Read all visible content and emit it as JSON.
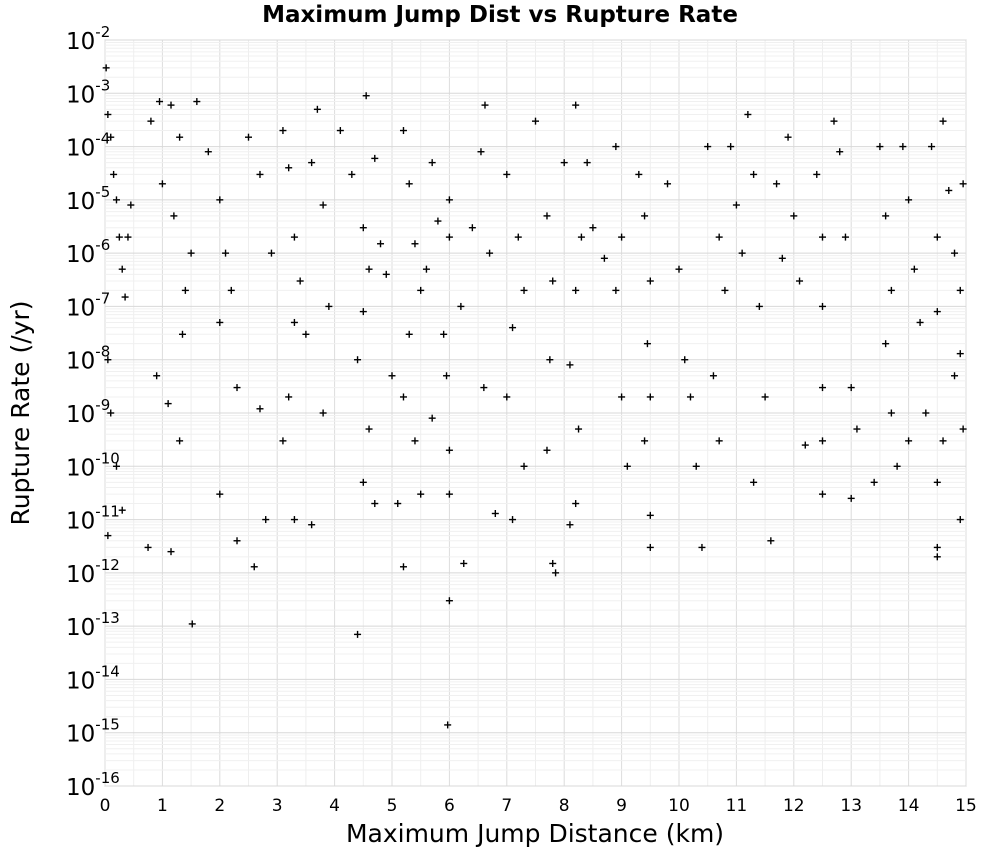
{
  "chart_data": {
    "type": "scatter",
    "title": "Maximum Jump Dist vs Rupture Rate",
    "xlabel": "Maximum Jump Distance (km)",
    "ylabel": "Rupture Rate (/yr)",
    "x_scale": "linear",
    "y_scale": "log",
    "xlim": [
      0,
      15
    ],
    "ylim": [
      1e-16,
      0.01
    ],
    "x_ticks": [
      "0",
      "1",
      "2",
      "3",
      "4",
      "5",
      "6",
      "7",
      "8",
      "9",
      "10",
      "11",
      "12",
      "13",
      "14",
      "15"
    ],
    "y_ticks": [
      {
        "base": "10",
        "exp": "-2"
      },
      {
        "base": "10",
        "exp": "-3"
      },
      {
        "base": "10",
        "exp": "-4"
      },
      {
        "base": "10",
        "exp": "-5"
      },
      {
        "base": "10",
        "exp": "-6"
      },
      {
        "base": "10",
        "exp": "-7"
      },
      {
        "base": "10",
        "exp": "-8"
      },
      {
        "base": "10",
        "exp": "-9"
      },
      {
        "base": "10",
        "exp": "-10"
      },
      {
        "base": "10",
        "exp": "-11"
      },
      {
        "base": "10",
        "exp": "-12"
      },
      {
        "base": "10",
        "exp": "-13"
      },
      {
        "base": "10",
        "exp": "-14"
      },
      {
        "base": "10",
        "exp": "-15"
      },
      {
        "base": "10",
        "exp": "-16"
      }
    ],
    "grid": true,
    "marker": "+",
    "marker_color": "#000000",
    "series": [
      {
        "points": [
          [
            0.02,
            0.003
          ],
          [
            0.05,
            0.0004
          ],
          [
            0.1,
            0.00015
          ],
          [
            0.15,
            3e-05
          ],
          [
            0.2,
            1e-05
          ],
          [
            0.25,
            2e-06
          ],
          [
            0.3,
            5e-07
          ],
          [
            0.35,
            1.5e-07
          ],
          [
            0.05,
            1e-08
          ],
          [
            0.1,
            1e-09
          ],
          [
            0.2,
            1e-10
          ],
          [
            0.3,
            1.5e-11
          ],
          [
            0.05,
            5e-12
          ],
          [
            0.4,
            2e-06
          ],
          [
            0.45,
            8e-06
          ],
          [
            0.8,
            0.0003
          ],
          [
            0.95,
            0.0007
          ],
          [
            1.15,
            0.0006
          ],
          [
            1.3,
            0.00015
          ],
          [
            1.0,
            2e-05
          ],
          [
            1.2,
            5e-06
          ],
          [
            1.5,
            1e-06
          ],
          [
            1.4,
            2e-07
          ],
          [
            1.35,
            3e-08
          ],
          [
            0.9,
            5e-09
          ],
          [
            1.1,
            1.5e-09
          ],
          [
            1.3,
            3e-10
          ],
          [
            0.75,
            3e-12
          ],
          [
            1.15,
            2.5e-12
          ],
          [
            1.52,
            1.1e-13
          ],
          [
            1.6,
            0.0007
          ],
          [
            1.8,
            8e-05
          ],
          [
            2.0,
            1e-05
          ],
          [
            2.1,
            1e-06
          ],
          [
            2.2,
            2e-07
          ],
          [
            2.0,
            5e-08
          ],
          [
            2.3,
            3e-09
          ],
          [
            2.0,
            3e-11
          ],
          [
            2.3,
            4e-12
          ],
          [
            2.6,
            1.3e-12
          ],
          [
            2.5,
            0.00015
          ],
          [
            2.7,
            3e-05
          ],
          [
            2.9,
            1e-06
          ],
          [
            2.7,
            1.2e-09
          ],
          [
            2.8,
            1e-11
          ],
          [
            3.1,
            0.0002
          ],
          [
            3.2,
            4e-05
          ],
          [
            3.3,
            2e-06
          ],
          [
            3.4,
            3e-07
          ],
          [
            3.3,
            5e-08
          ],
          [
            3.2,
            2e-09
          ],
          [
            3.1,
            3e-10
          ],
          [
            3.3,
            1e-11
          ],
          [
            3.6,
            5e-05
          ],
          [
            3.7,
            0.0005
          ],
          [
            3.8,
            8e-06
          ],
          [
            3.9,
            1e-07
          ],
          [
            3.5,
            3e-08
          ],
          [
            3.8,
            1e-09
          ],
          [
            3.6,
            8e-12
          ],
          [
            4.1,
            0.0002
          ],
          [
            4.3,
            3e-05
          ],
          [
            4.5,
            3e-06
          ],
          [
            4.6,
            5e-07
          ],
          [
            4.5,
            8e-08
          ],
          [
            4.4,
            1e-08
          ],
          [
            4.6,
            5e-10
          ],
          [
            4.5,
            5e-11
          ],
          [
            4.4,
            7e-14
          ],
          [
            4.7,
            2e-11
          ],
          [
            4.8,
            1.5e-06
          ],
          [
            4.9,
            4e-07
          ],
          [
            4.7,
            6e-05
          ],
          [
            4.55,
            0.0009
          ],
          [
            5.0,
            5e-09
          ],
          [
            5.2,
            0.0002
          ],
          [
            5.3,
            2e-05
          ],
          [
            5.4,
            1.5e-06
          ],
          [
            5.5,
            2e-07
          ],
          [
            5.3,
            3e-08
          ],
          [
            5.2,
            2e-09
          ],
          [
            5.4,
            3e-10
          ],
          [
            5.1,
            2e-11
          ],
          [
            5.2,
            1.3e-12
          ],
          [
            5.5,
            3e-11
          ],
          [
            5.7,
            5e-05
          ],
          [
            5.8,
            4e-06
          ],
          [
            5.6,
            5e-07
          ],
          [
            5.9,
            3e-08
          ],
          [
            5.7,
            8e-10
          ],
          [
            6.0,
            1e-05
          ],
          [
            6.0,
            2e-06
          ],
          [
            5.95,
            5e-09
          ],
          [
            6.0,
            2e-10
          ],
          [
            6.0,
            3e-11
          ],
          [
            6.0,
            3e-13
          ],
          [
            5.97,
            1.4e-15
          ],
          [
            6.25,
            1.5e-12
          ],
          [
            6.2,
            1e-07
          ],
          [
            6.4,
            3e-06
          ],
          [
            6.55,
            8e-05
          ],
          [
            6.62,
            0.0006
          ],
          [
            6.7,
            1e-06
          ],
          [
            6.6,
            3e-09
          ],
          [
            6.8,
            1.3e-11
          ],
          [
            7.0,
            3e-05
          ],
          [
            7.2,
            2e-06
          ],
          [
            7.3,
            2e-07
          ],
          [
            7.1,
            4e-08
          ],
          [
            7.0,
            2e-09
          ],
          [
            7.3,
            1e-10
          ],
          [
            7.1,
            1e-11
          ],
          [
            7.5,
            0.0003
          ],
          [
            7.7,
            5e-06
          ],
          [
            7.8,
            3e-07
          ],
          [
            7.75,
            1e-08
          ],
          [
            7.7,
            2e-10
          ],
          [
            7.8,
            1.5e-12
          ],
          [
            7.85,
            1e-12
          ],
          [
            8.0,
            5e-05
          ],
          [
            8.2,
            0.0006
          ],
          [
            8.3,
            2e-06
          ],
          [
            8.2,
            2e-07
          ],
          [
            8.1,
            8e-09
          ],
          [
            8.25,
            5e-10
          ],
          [
            8.2,
            2e-11
          ],
          [
            8.1,
            8e-12
          ],
          [
            8.4,
            5e-05
          ],
          [
            8.5,
            3e-06
          ],
          [
            8.7,
            8e-07
          ],
          [
            8.9,
            0.0001
          ],
          [
            9.0,
            2e-06
          ],
          [
            8.9,
            2e-07
          ],
          [
            9.0,
            2e-09
          ],
          [
            9.1,
            1e-10
          ],
          [
            9.3,
            3e-05
          ],
          [
            9.4,
            5e-06
          ],
          [
            9.5,
            3e-07
          ],
          [
            9.45,
            2e-08
          ],
          [
            9.5,
            2e-09
          ],
          [
            9.4,
            3e-10
          ],
          [
            9.5,
            1.2e-11
          ],
          [
            9.5,
            3e-12
          ],
          [
            9.8,
            2e-05
          ],
          [
            10.0,
            5e-07
          ],
          [
            10.1,
            1e-08
          ],
          [
            10.3,
            1e-10
          ],
          [
            10.4,
            3e-12
          ],
          [
            10.2,
            2e-09
          ],
          [
            10.5,
            0.0001
          ],
          [
            10.7,
            2e-06
          ],
          [
            10.8,
            2e-07
          ],
          [
            10.6,
            5e-09
          ],
          [
            10.7,
            3e-10
          ],
          [
            10.9,
            0.0001
          ],
          [
            11.0,
            8e-06
          ],
          [
            11.1,
            1e-06
          ],
          [
            11.2,
            0.0004
          ],
          [
            11.3,
            3e-05
          ],
          [
            11.4,
            1e-07
          ],
          [
            11.5,
            2e-09
          ],
          [
            11.3,
            5e-11
          ],
          [
            11.6,
            4e-12
          ],
          [
            11.7,
            2e-05
          ],
          [
            11.8,
            8e-07
          ],
          [
            11.9,
            0.00015
          ],
          [
            12.0,
            5e-06
          ],
          [
            12.1,
            3e-07
          ],
          [
            12.2,
            2.5e-10
          ],
          [
            12.4,
            3e-05
          ],
          [
            12.5,
            2e-06
          ],
          [
            12.5,
            1e-07
          ],
          [
            12.5,
            3e-09
          ],
          [
            12.5,
            3e-10
          ],
          [
            12.5,
            3e-11
          ],
          [
            12.7,
            0.0003
          ],
          [
            12.8,
            8e-05
          ],
          [
            12.9,
            2e-06
          ],
          [
            13.0,
            3e-09
          ],
          [
            13.1,
            5e-10
          ],
          [
            13.0,
            2.5e-11
          ],
          [
            13.4,
            5e-11
          ],
          [
            13.5,
            0.0001
          ],
          [
            13.6,
            5e-06
          ],
          [
            13.7,
            2e-07
          ],
          [
            13.6,
            2e-08
          ],
          [
            13.7,
            1e-09
          ],
          [
            13.8,
            1e-10
          ],
          [
            13.9,
            0.0001
          ],
          [
            14.0,
            1e-05
          ],
          [
            14.1,
            5e-07
          ],
          [
            14.0,
            3e-10
          ],
          [
            14.2,
            5e-08
          ],
          [
            14.3,
            1e-09
          ],
          [
            14.4,
            0.0001
          ],
          [
            14.5,
            2e-06
          ],
          [
            14.5,
            8e-08
          ],
          [
            14.6,
            3e-10
          ],
          [
            14.5,
            5e-11
          ],
          [
            14.5,
            3e-12
          ],
          [
            14.5,
            2e-12
          ],
          [
            14.6,
            0.0003
          ],
          [
            14.7,
            1.5e-05
          ],
          [
            14.8,
            1e-06
          ],
          [
            14.9,
            2e-07
          ],
          [
            14.9,
            1.3e-08
          ],
          [
            14.95,
            5e-10
          ],
          [
            14.9,
            1e-11
          ],
          [
            14.95,
            2e-05
          ],
          [
            14.8,
            5e-09
          ]
        ]
      }
    ]
  }
}
